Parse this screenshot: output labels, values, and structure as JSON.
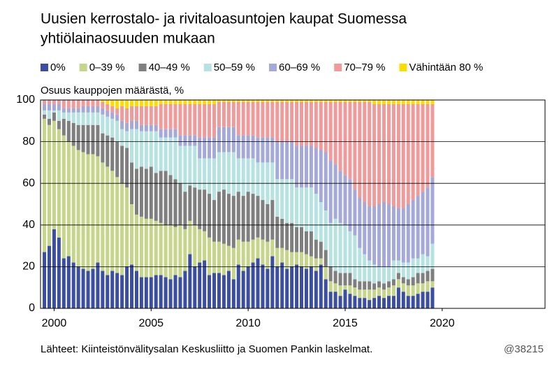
{
  "chart_data": {
    "type": "stacked-bar",
    "title": [
      "Uusien kerrostalo- ja rivitaloasuntojen kaupat Suomessa",
      "yhtiölainaosuuden mukaan"
    ],
    "y_label": "Osuus kauppojen määrästä, %",
    "source": "Lähteet: Kiinteistönvälitysalan Keskusliitto ja Suomen Pankin laskelmat.",
    "chart_id": "@38215",
    "x": [
      2000,
      2000.25,
      2000.5,
      2000.75,
      2001,
      2001.25,
      2001.5,
      2001.75,
      2002,
      2002.25,
      2002.5,
      2002.75,
      2003,
      2003.25,
      2003.5,
      2003.75,
      2004,
      2004.25,
      2004.5,
      2004.75,
      2005,
      2005.25,
      2005.5,
      2005.75,
      2006,
      2006.25,
      2006.5,
      2006.75,
      2007,
      2007.25,
      2007.5,
      2007.75,
      2008,
      2008.25,
      2008.5,
      2008.75,
      2009,
      2009.25,
      2009.5,
      2009.75,
      2010,
      2010.25,
      2010.5,
      2010.75,
      2011,
      2011.25,
      2011.5,
      2011.75,
      2012,
      2012.25,
      2012.5,
      2012.75,
      2013,
      2013.25,
      2013.5,
      2013.75,
      2014,
      2014.25,
      2014.5,
      2014.75,
      2015,
      2015.25,
      2015.5,
      2015.75,
      2016,
      2016.25,
      2016.5,
      2016.75,
      2017,
      2017.25,
      2017.5,
      2017.75,
      2018,
      2018.25,
      2018.5,
      2018.75,
      2019,
      2019.25,
      2019.5,
      2019.75,
      2020
    ],
    "xlim": [
      1999.8,
      2025.8
    ],
    "xticks": [
      {
        "value": 2000.5,
        "label": "2000"
      },
      {
        "value": 2005.5,
        "label": "2005"
      },
      {
        "value": 2010.5,
        "label": "2010"
      },
      {
        "value": 2015.5,
        "label": "2015"
      },
      {
        "value": 2020.5,
        "label": "2020"
      }
    ],
    "ylim": [
      0,
      100
    ],
    "yticks": [
      0,
      20,
      40,
      60,
      80,
      100
    ],
    "grid": true,
    "legend": "top",
    "series": [
      {
        "name": "0%",
        "color": "#3c4ea0",
        "values": [
          27,
          30,
          38,
          34,
          24,
          25,
          22,
          20,
          19,
          18,
          19,
          22,
          18,
          16,
          18,
          17,
          16,
          20,
          21,
          18,
          15,
          15,
          15,
          16,
          16,
          15,
          14,
          16,
          15,
          18,
          26,
          20,
          22,
          23,
          16,
          17,
          17,
          16,
          18,
          14,
          21,
          18,
          20,
          22,
          24,
          21,
          19,
          25,
          20,
          22,
          19,
          20,
          21,
          20,
          19,
          20,
          18,
          21,
          14,
          8,
          8,
          6,
          9,
          7,
          6,
          5,
          5,
          4,
          5,
          6,
          5,
          6,
          6,
          10,
          8,
          6,
          6,
          7,
          8,
          8,
          10
        ]
      },
      {
        "name": "0–39 %",
        "color": "#c5d68b",
        "values": [
          64,
          58,
          52,
          52,
          59,
          55,
          56,
          56,
          56,
          56,
          55,
          51,
          52,
          52,
          48,
          46,
          44,
          38,
          29,
          27,
          29,
          28,
          28,
          26,
          25,
          25,
          26,
          23,
          25,
          20,
          16,
          20,
          16,
          14,
          18,
          15,
          15,
          15,
          12,
          15,
          12,
          14,
          12,
          11,
          10,
          12,
          13,
          8,
          9,
          7,
          9,
          7,
          6,
          7,
          7,
          5,
          6,
          3,
          6,
          5,
          4,
          5,
          2,
          4,
          4,
          4,
          4,
          5,
          4,
          4,
          4,
          4,
          5,
          4,
          4,
          5,
          5,
          5,
          4,
          5,
          3
        ]
      },
      {
        "name": "40–49 %",
        "color": "#7f7f7f",
        "values": [
          2,
          3,
          4,
          4,
          8,
          10,
          11,
          12,
          13,
          14,
          14,
          15,
          14,
          15,
          16,
          17,
          18,
          19,
          20,
          22,
          24,
          24,
          25,
          23,
          25,
          26,
          24,
          23,
          20,
          18,
          17,
          18,
          19,
          20,
          21,
          20,
          24,
          26,
          25,
          25,
          23,
          22,
          24,
          22,
          20,
          19,
          18,
          19,
          15,
          14,
          13,
          14,
          12,
          12,
          11,
          12,
          9,
          8,
          8,
          7,
          6,
          6,
          6,
          6,
          4,
          4,
          4,
          4,
          3,
          3,
          3,
          3,
          3,
          3,
          3,
          3,
          4,
          5,
          5,
          5,
          6
        ]
      },
      {
        "name": "50–59 %",
        "color": "#b7e2e2",
        "values": [
          2,
          4,
          1,
          5,
          3,
          4,
          5,
          6,
          6,
          6,
          6,
          6,
          9,
          9,
          9,
          10,
          8,
          8,
          16,
          19,
          17,
          18,
          17,
          20,
          16,
          16,
          18,
          20,
          18,
          22,
          19,
          20,
          15,
          15,
          17,
          20,
          19,
          18,
          20,
          21,
          16,
          18,
          16,
          17,
          16,
          18,
          20,
          18,
          18,
          19,
          21,
          21,
          19,
          19,
          21,
          21,
          22,
          19,
          19,
          21,
          25,
          24,
          23,
          20,
          21,
          16,
          13,
          10,
          9,
          7,
          8,
          7,
          9,
          6,
          7,
          8,
          9,
          7,
          9,
          7,
          12
        ]
      },
      {
        "name": "60–69 %",
        "color": "#a4a9d9",
        "values": [
          3,
          3,
          3,
          3,
          2,
          2,
          2,
          2,
          3,
          3,
          3,
          3,
          3,
          3,
          3,
          3,
          4,
          4,
          4,
          4,
          3,
          3,
          3,
          3,
          4,
          4,
          4,
          4,
          5,
          5,
          5,
          5,
          10,
          10,
          10,
          10,
          12,
          12,
          12,
          12,
          11,
          11,
          11,
          11,
          12,
          12,
          12,
          12,
          18,
          18,
          18,
          18,
          20,
          20,
          20,
          20,
          22,
          25,
          28,
          30,
          26,
          25,
          24,
          25,
          22,
          24,
          25,
          26,
          28,
          30,
          31,
          30,
          26,
          25,
          26,
          28,
          28,
          30,
          30,
          33,
          32
        ]
      },
      {
        "name": "70–79 %",
        "color": "#ef9b9c",
        "values": [
          2,
          2,
          2,
          2,
          4,
          4,
          4,
          4,
          3,
          3,
          3,
          3,
          3,
          3,
          3,
          3,
          7,
          7,
          7,
          7,
          9,
          9,
          9,
          9,
          12,
          12,
          12,
          12,
          15,
          15,
          15,
          15,
          16,
          16,
          16,
          16,
          12,
          12,
          12,
          12,
          16,
          16,
          16,
          16,
          17,
          17,
          17,
          17,
          19,
          19,
          19,
          19,
          21,
          21,
          21,
          21,
          22,
          23,
          24,
          28,
          30,
          33,
          35,
          37,
          42,
          46,
          48,
          50,
          49,
          48,
          47,
          48,
          49,
          50,
          50,
          48,
          46,
          44,
          42,
          40,
          35
        ]
      },
      {
        "name": "Vähintään 80 %",
        "color": "#ffdc00",
        "values": [
          0,
          0,
          0,
          0,
          0,
          0,
          0,
          0,
          0,
          0,
          0,
          0,
          1,
          2,
          3,
          4,
          3,
          4,
          3,
          3,
          3,
          3,
          3,
          3,
          2,
          2,
          2,
          2,
          2,
          2,
          2,
          2,
          2,
          2,
          2,
          2,
          1,
          1,
          1,
          1,
          1,
          1,
          1,
          1,
          1,
          1,
          1,
          1,
          1,
          1,
          1,
          1,
          1,
          1,
          1,
          1,
          1,
          1,
          1,
          1,
          1,
          1,
          1,
          1,
          1,
          1,
          1,
          1,
          2,
          2,
          2,
          2,
          2,
          2,
          2,
          2,
          2,
          2,
          2,
          2,
          2
        ]
      }
    ]
  }
}
